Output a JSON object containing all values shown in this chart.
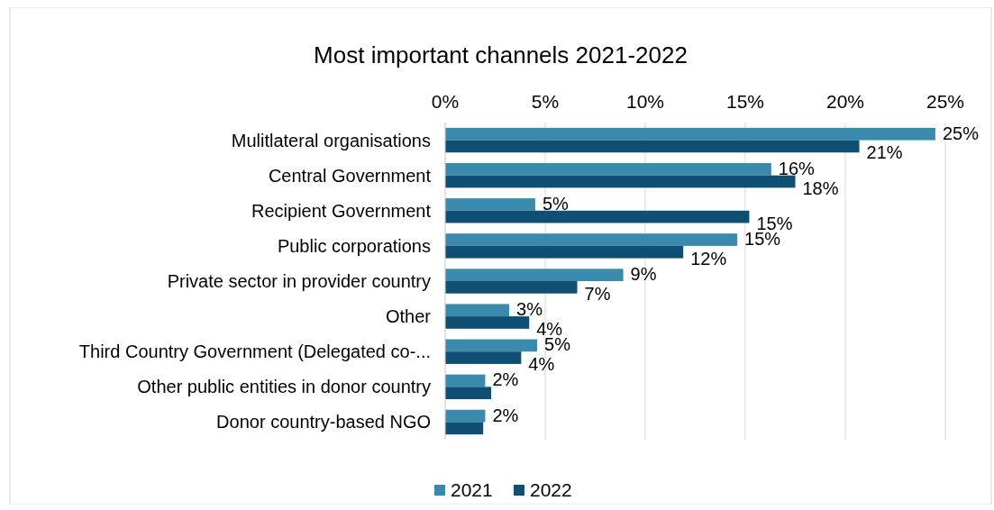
{
  "chart_data": {
    "type": "bar",
    "orientation": "horizontal",
    "title": "Most important channels 2021-2022",
    "categories": [
      "Mulitlateral organisations",
      "Central Government",
      "Recipient Government",
      "Public corporations",
      "Private sector in provider country",
      "Other",
      "Third Country Government (Delegated co-...",
      "Other public entities in donor country",
      "Donor country-based NGO"
    ],
    "series": [
      {
        "name": "2021",
        "color": "#3a8aad",
        "values": [
          24.5,
          16.3,
          4.5,
          14.6,
          8.9,
          3.2,
          4.6,
          2.0,
          2.0
        ],
        "value_labels": [
          "25%",
          "16%",
          "5%",
          "15%",
          "9%",
          "3%",
          "5%",
          "2%",
          "2%"
        ]
      },
      {
        "name": "2022",
        "color": "#0e4f73",
        "values": [
          20.7,
          17.5,
          15.2,
          11.9,
          6.6,
          4.2,
          3.8,
          2.3,
          1.9
        ],
        "value_labels": [
          "21%",
          "18%",
          "15%",
          "12%",
          "7%",
          "4%",
          "4%",
          null,
          null
        ]
      }
    ],
    "xlim": [
      0,
      25
    ],
    "xticks": [
      {
        "value": 0,
        "label": "0%"
      },
      {
        "value": 5,
        "label": "5%"
      },
      {
        "value": 10,
        "label": "10%"
      },
      {
        "value": 15,
        "label": "15%"
      },
      {
        "value": 20,
        "label": "20%"
      },
      {
        "value": 25,
        "label": "25%"
      }
    ],
    "grid": "x",
    "legend": "bottom"
  }
}
